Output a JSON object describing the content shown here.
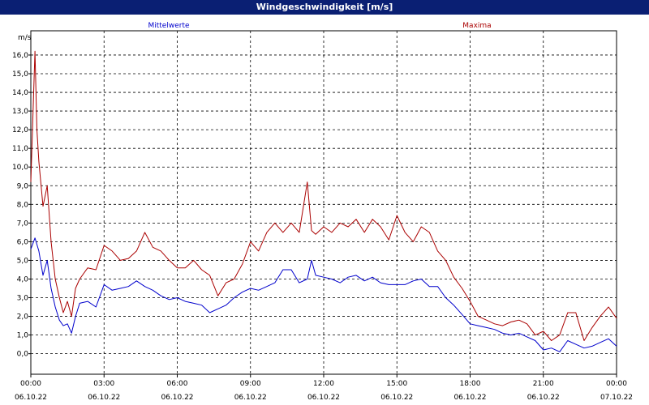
{
  "window": {
    "title": "Windgeschwindigkeit [m/s]"
  },
  "chart_data": {
    "type": "line",
    "title": "Windgeschwindigkeit [m/s]",
    "ylabel": "m/s",
    "ylim": [
      -1.1,
      17.3
    ],
    "y_ticks": [
      "0,0",
      "1,0",
      "2,0",
      "3,0",
      "4,0",
      "5,0",
      "6,0",
      "7,0",
      "8,0",
      "9,0",
      "10,0",
      "11,0",
      "12,0",
      "13,0",
      "14,0",
      "15,0",
      "16,0"
    ],
    "x_range_hours": [
      0,
      24
    ],
    "x_ticks": [
      {
        "time": "00:00",
        "date": "06.10.22"
      },
      {
        "time": "03:00",
        "date": "06.10.22"
      },
      {
        "time": "06:00",
        "date": "06.10.22"
      },
      {
        "time": "09:00",
        "date": "06.10.22"
      },
      {
        "time": "12:00",
        "date": "06.10.22"
      },
      {
        "time": "15:00",
        "date": "06.10.22"
      },
      {
        "time": "18:00",
        "date": "06.10.22"
      },
      {
        "time": "21:00",
        "date": "06.10.22"
      },
      {
        "time": "00:00",
        "date": "07.10.22"
      }
    ],
    "grid": true,
    "legend_position": "top",
    "series": [
      {
        "name": "Mittelwerte",
        "color": "#0000cc",
        "x": [
          0,
          0.17,
          0.33,
          0.5,
          0.67,
          0.83,
          1.0,
          1.17,
          1.33,
          1.5,
          1.67,
          1.83,
          2.0,
          2.33,
          2.67,
          3.0,
          3.33,
          3.67,
          4.0,
          4.33,
          4.67,
          5.0,
          5.33,
          5.67,
          6.0,
          6.33,
          6.67,
          7.0,
          7.33,
          7.67,
          8.0,
          8.33,
          8.67,
          9.0,
          9.33,
          9.67,
          10.0,
          10.33,
          10.67,
          11.0,
          11.33,
          11.5,
          11.67,
          12.0,
          12.33,
          12.67,
          13.0,
          13.33,
          13.67,
          14.0,
          14.33,
          14.67,
          15.0,
          15.33,
          15.67,
          16.0,
          16.33,
          16.67,
          17.0,
          17.33,
          17.67,
          18.0,
          18.33,
          18.67,
          19.0,
          19.33,
          19.67,
          20.0,
          20.33,
          20.67,
          21.0,
          21.33,
          21.67,
          22.0,
          22.33,
          22.67,
          23.0,
          23.33,
          23.67,
          24.0
        ],
        "values": [
          5.6,
          6.2,
          5.5,
          4.2,
          5.0,
          3.5,
          2.5,
          1.8,
          1.5,
          1.6,
          1.1,
          2.0,
          2.7,
          2.8,
          2.5,
          3.7,
          3.4,
          3.5,
          3.6,
          3.9,
          3.6,
          3.4,
          3.1,
          2.9,
          3.0,
          2.8,
          2.7,
          2.6,
          2.2,
          2.4,
          2.6,
          3.0,
          3.3,
          3.5,
          3.4,
          3.6,
          3.8,
          4.5,
          4.5,
          3.8,
          4.0,
          5.0,
          4.2,
          4.1,
          4.0,
          3.8,
          4.1,
          4.2,
          3.9,
          4.1,
          3.8,
          3.7,
          3.7,
          3.7,
          3.9,
          4.0,
          3.6,
          3.6,
          3.0,
          2.6,
          2.1,
          1.6,
          1.5,
          1.4,
          1.3,
          1.1,
          1.0,
          1.1,
          0.9,
          0.7,
          0.2,
          0.3,
          0.1,
          0.7,
          0.5,
          0.3,
          0.4,
          0.6,
          0.8,
          0.4
        ]
      },
      {
        "name": "Maxima",
        "color": "#aa0000",
        "x": [
          0,
          0.17,
          0.25,
          0.33,
          0.5,
          0.67,
          0.83,
          1.0,
          1.17,
          1.33,
          1.5,
          1.67,
          1.83,
          2.0,
          2.33,
          2.67,
          3.0,
          3.33,
          3.67,
          4.0,
          4.33,
          4.67,
          5.0,
          5.33,
          5.67,
          6.0,
          6.33,
          6.67,
          7.0,
          7.33,
          7.67,
          8.0,
          8.33,
          8.67,
          9.0,
          9.33,
          9.67,
          10.0,
          10.33,
          10.67,
          11.0,
          11.33,
          11.5,
          11.67,
          12.0,
          12.33,
          12.67,
          13.0,
          13.33,
          13.67,
          14.0,
          14.33,
          14.67,
          15.0,
          15.33,
          15.67,
          16.0,
          16.33,
          16.67,
          17.0,
          17.33,
          17.67,
          18.0,
          18.33,
          18.67,
          19.0,
          19.33,
          19.67,
          20.0,
          20.33,
          20.67,
          21.0,
          21.33,
          21.67,
          22.0,
          22.33,
          22.67,
          23.0,
          23.33,
          23.67,
          24.0
        ],
        "values": [
          9.2,
          16.2,
          12.0,
          10.3,
          7.9,
          9.0,
          6.0,
          4.0,
          3.0,
          2.2,
          2.8,
          2.0,
          3.5,
          4.0,
          4.6,
          4.5,
          5.8,
          5.5,
          5.0,
          5.1,
          5.5,
          6.5,
          5.7,
          5.5,
          5.0,
          4.6,
          4.6,
          5.0,
          4.5,
          4.2,
          3.1,
          3.8,
          4.0,
          4.8,
          6.0,
          5.5,
          6.5,
          7.0,
          6.5,
          7.0,
          6.5,
          9.2,
          6.6,
          6.4,
          6.8,
          6.5,
          7.0,
          6.8,
          7.2,
          6.5,
          7.2,
          6.8,
          6.1,
          7.4,
          6.5,
          6.0,
          6.8,
          6.5,
          5.5,
          5.0,
          4.1,
          3.5,
          2.8,
          2.0,
          1.8,
          1.6,
          1.5,
          1.7,
          1.8,
          1.6,
          1.0,
          1.2,
          0.7,
          1.0,
          2.2,
          2.2,
          0.7,
          1.4,
          2.0,
          2.5,
          1.9
        ]
      }
    ]
  }
}
